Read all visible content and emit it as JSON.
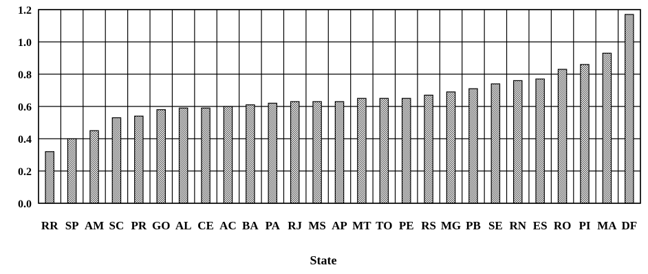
{
  "chart_data": {
    "type": "bar",
    "categories": [
      "RR",
      "SP",
      "AM",
      "SC",
      "PR",
      "GO",
      "AL",
      "CE",
      "AC",
      "BA",
      "PA",
      "RJ",
      "MS",
      "AP",
      "MT",
      "TO",
      "PE",
      "RS",
      "MG",
      "PB",
      "SE",
      "RN",
      "ES",
      "RO",
      "PI",
      "MA",
      "DF"
    ],
    "values": [
      0.32,
      0.4,
      0.45,
      0.53,
      0.54,
      0.58,
      0.59,
      0.59,
      0.6,
      0.61,
      0.62,
      0.63,
      0.63,
      0.63,
      0.65,
      0.65,
      0.65,
      0.67,
      0.69,
      0.71,
      0.74,
      0.76,
      0.77,
      0.83,
      0.86,
      0.93,
      1.17
    ],
    "xlabel": "State",
    "ylabel": "",
    "ylim": [
      0,
      1.2
    ],
    "yticks": [
      "0.0",
      "0.2",
      "0.4",
      "0.6",
      "0.8",
      "1.0",
      "1.2"
    ],
    "grid": true,
    "legend": "none",
    "bar_fill": "#bdbdbd"
  }
}
